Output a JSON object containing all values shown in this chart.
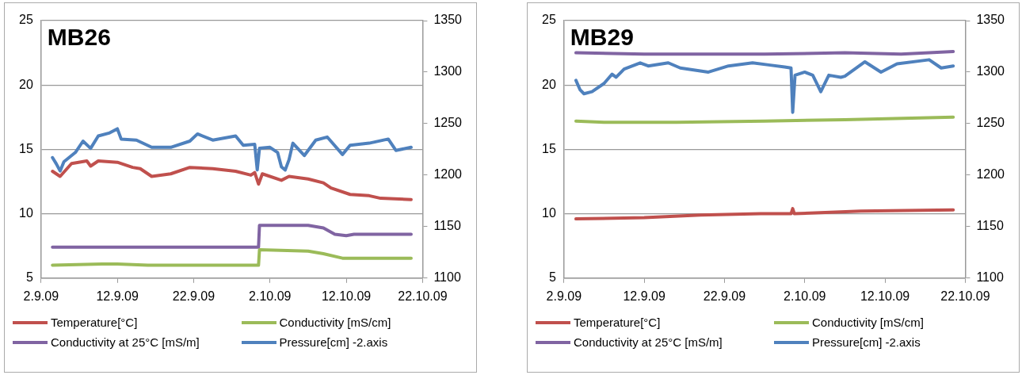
{
  "chart_data": [
    {
      "type": "line",
      "title": "MB26",
      "xlim": [
        "--09-02",
        "--10-22"
      ],
      "xticks": [
        {
          "value": "--09-02",
          "label": "2.9.09"
        },
        {
          "value": "--09-12",
          "label": "12.9.09"
        },
        {
          "value": "--09-22",
          "label": "22.9.09"
        },
        {
          "value": "--10-02",
          "label": "2.10.09"
        },
        {
          "value": "--10-12",
          "label": "12.10.09"
        },
        {
          "value": "--10-22",
          "label": "22.10.09"
        }
      ],
      "ylim": [
        5,
        25
      ],
      "yticks": [
        5,
        10,
        15,
        20,
        25
      ],
      "y2lim": [
        1100,
        1350
      ],
      "y2ticks": [
        1100,
        1150,
        1200,
        1250,
        1300,
        1350
      ],
      "grid": "y",
      "legend": "bottom",
      "marker": "none",
      "series": [
        {
          "name": "Temperature[°C]",
          "color": "#c0504d",
          "x": [
            "--09-03T12:00",
            "--09-04T12:00",
            "--09-06",
            "--09-08",
            "--09-08T12:00",
            "--09-09T12:00",
            "--09-12",
            "--09-14",
            "--09-15",
            "--09-16T12:00",
            "--09-19",
            "--09-21T12:00",
            "--09-24T12:00",
            "--09-27T12:00",
            "--09-29T12:00",
            "--09-30",
            "--09-30T12:00",
            "--10-01",
            "--10-03T12:00",
            "--10-04T12:00",
            "--10-07",
            "--10-09",
            "--10-10",
            "--10-12T12:00",
            "--10-15",
            "--10-16T12:00",
            "--10-20T12:00"
          ],
          "values": [
            13.3,
            12.9,
            13.9,
            14.1,
            13.7,
            14.1,
            14.0,
            13.6,
            13.5,
            12.9,
            13.1,
            13.6,
            13.5,
            13.3,
            13.0,
            13.2,
            12.3,
            13.1,
            12.6,
            12.9,
            12.7,
            12.4,
            12.0,
            11.5,
            11.4,
            11.2,
            11.1
          ]
        },
        {
          "name": "Conductivity [mS/cm]",
          "color": "#9bbb59",
          "x": [
            "--09-03T12:00",
            "--09-10",
            "--09-12",
            "--09-16",
            "--09-30T12:00",
            "--09-30T15:00",
            "--10-07",
            "--10-09",
            "--10-11T12:00",
            "--10-20T12:00"
          ],
          "values": [
            6.0,
            6.1,
            6.1,
            6.0,
            6.0,
            7.2,
            7.1,
            6.9,
            6.55,
            6.55
          ]
        },
        {
          "name": "Conductivity at 25°C [mS/m]",
          "color": "#8064a2",
          "x": [
            "--09-03T12:00",
            "--09-30T12:00",
            "--09-30T15:00",
            "--10-07",
            "--10-09",
            "--10-10T12:00",
            "--10-12",
            "--10-13",
            "--10-20T12:00"
          ],
          "values": [
            7.4,
            7.4,
            9.1,
            9.1,
            8.9,
            8.4,
            8.3,
            8.4,
            8.4
          ]
        },
        {
          "name": "Pressure[cm] -2.axis",
          "color": "#4f81bd",
          "axis": "y2",
          "x": [
            "--09-03T12:00",
            "--09-04",
            "--09-04T12:00",
            "--09-05",
            "--09-06T12:00",
            "--09-07T12:00",
            "--09-08T12:00",
            "--09-09T12:00",
            "--09-11",
            "--09-12",
            "--09-12T12:00",
            "--09-14T12:00",
            "--09-16T12:00",
            "--09-19",
            "--09-21T12:00",
            "--09-22T12:00",
            "--09-24T12:00",
            "--09-27T12:00",
            "--09-28T12:00",
            "--09-30",
            "--09-30T08:00",
            "--09-30T15:00",
            "--10-02",
            "--10-03",
            "--10-03T12:00",
            "--10-04",
            "--10-04T12:00",
            "--10-05",
            "--10-06T12:00",
            "--10-08",
            "--10-09T12:00",
            "--10-11T12:00",
            "--10-12T12:00",
            "--10-15",
            "--10-17T12:00",
            "--10-18T12:00",
            "--10-20T12:00"
          ],
          "values": [
            1217,
            1211,
            1204,
            1213,
            1222,
            1233,
            1226,
            1238,
            1241,
            1245,
            1235,
            1234,
            1227,
            1227,
            1233,
            1240,
            1234,
            1238,
            1229,
            1230,
            1205,
            1226,
            1227,
            1222,
            1208,
            1205,
            1215,
            1231,
            1219,
            1234,
            1237,
            1220,
            1229,
            1231,
            1235,
            1224,
            1227
          ]
        }
      ]
    },
    {
      "type": "line",
      "title": "MB29",
      "xlim": [
        "--09-02",
        "--10-22"
      ],
      "xticks": [
        {
          "value": "--09-02",
          "label": "2.9.09"
        },
        {
          "value": "--09-12",
          "label": "12.9.09"
        },
        {
          "value": "--09-22",
          "label": "22.9.09"
        },
        {
          "value": "--10-02",
          "label": "2.10.09"
        },
        {
          "value": "--10-12",
          "label": "12.10.09"
        },
        {
          "value": "--10-22",
          "label": "22.10.09"
        }
      ],
      "ylim": [
        5,
        25
      ],
      "yticks": [
        5,
        10,
        15,
        20,
        25
      ],
      "y2lim": [
        1100,
        1350
      ],
      "y2ticks": [
        1100,
        1150,
        1200,
        1250,
        1300,
        1350
      ],
      "grid": "y",
      "legend": "bottom",
      "marker": "none",
      "series": [
        {
          "name": "Temperature[°C]",
          "color": "#c0504d",
          "x": [
            "--09-03T12:00",
            "--09-12",
            "--09-19",
            "--09-26T12:00",
            "--09-30T07:00",
            "--09-30T12:00",
            "--09-30T17:00",
            "--10-09",
            "--10-20T12:00"
          ],
          "values": [
            9.6,
            9.7,
            9.9,
            10.0,
            10.0,
            10.4,
            10.0,
            10.2,
            10.3
          ]
        },
        {
          "name": "Conductivity [mS/cm]",
          "color": "#9bbb59",
          "x": [
            "--09-03T12:00",
            "--09-07",
            "--09-16",
            "--09-27",
            "--10-07",
            "--10-20T12:00"
          ],
          "values": [
            17.2,
            17.1,
            17.1,
            17.2,
            17.3,
            17.5
          ]
        },
        {
          "name": "Conductivity at 25°C [mS/m]",
          "color": "#8064a2",
          "x": [
            "--09-03T12:00",
            "--09-12",
            "--09-27",
            "--10-07",
            "--10-14",
            "--10-20T12:00"
          ],
          "values": [
            22.5,
            22.4,
            22.4,
            22.5,
            22.4,
            22.6
          ]
        },
        {
          "name": "Pressure[cm] -2.axis",
          "color": "#4f81bd",
          "axis": "y2",
          "x": [
            "--09-03T12:00",
            "--09-04",
            "--09-04T12:00",
            "--09-05T12:00",
            "--09-07",
            "--09-08",
            "--09-08T12:00",
            "--09-09T12:00",
            "--09-11T12:00",
            "--09-12T12:00",
            "--09-15",
            "--09-16T12:00",
            "--09-20",
            "--09-22T12:00",
            "--09-25T12:00",
            "--09-27T12:00",
            "--09-29T12:00",
            "--09-30T07:00",
            "--09-30T12:00",
            "--09-30T19:00",
            "--10-02",
            "--10-03",
            "--10-04",
            "--10-05",
            "--10-06T12:00",
            "--10-07",
            "--10-09T12:00",
            "--10-11T12:00",
            "--10-13T12:00",
            "--10-17T12:00",
            "--10-19",
            "--10-20T12:00"
          ],
          "values": [
            1292,
            1283,
            1279,
            1281,
            1289,
            1298,
            1295,
            1303,
            1309,
            1306,
            1309,
            1304,
            1300,
            1306,
            1309,
            1307,
            1305,
            1304,
            1261,
            1297,
            1300,
            1297,
            1281,
            1297,
            1295,
            1296,
            1310,
            1300,
            1308,
            1312,
            1304,
            1306
          ]
        }
      ]
    }
  ]
}
